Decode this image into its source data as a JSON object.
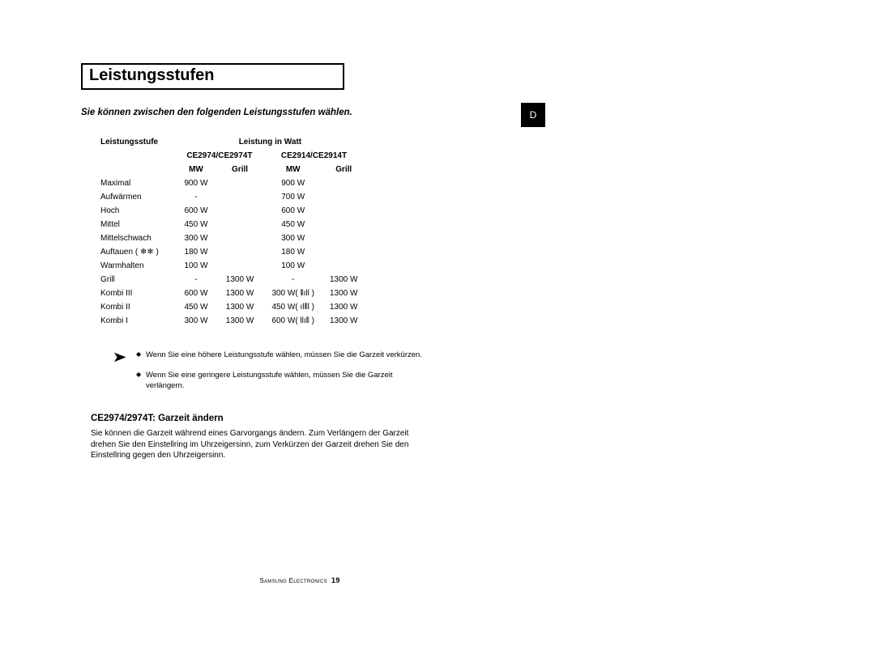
{
  "title": "Leistungsstufen",
  "intro": "Sie können zwischen den folgenden Leistungsstufen wählen.",
  "side_badge": "D",
  "table": {
    "col_level": "Leistungsstufe",
    "col_power": "Leistung in Watt",
    "model1": "CE2974/CE2974T",
    "model2": "CE2914/CE2914T",
    "sub_mw": "MW",
    "sub_grill": "Grill",
    "rows": [
      {
        "label": "Maximal",
        "m1_mw": "900 W",
        "m1_g": "",
        "m2_mw": "900 W",
        "m2_g": ""
      },
      {
        "label": "Aufwärmen",
        "m1_mw": "-",
        "m1_g": "",
        "m2_mw": "700 W",
        "m2_g": ""
      },
      {
        "label": "Hoch",
        "m1_mw": "600 W",
        "m1_g": "",
        "m2_mw": "600 W",
        "m2_g": ""
      },
      {
        "label": "Mittel",
        "m1_mw": "450 W",
        "m1_g": "",
        "m2_mw": "450 W",
        "m2_g": ""
      },
      {
        "label": "Mittelschwach",
        "m1_mw": "300 W",
        "m1_g": "",
        "m2_mw": "300 W",
        "m2_g": ""
      },
      {
        "label": "Auftauen ( ❄❄ )",
        "m1_mw": "180 W",
        "m1_g": "",
        "m2_mw": "180 W",
        "m2_g": ""
      },
      {
        "label": "Warmhalten",
        "m1_mw": "100 W",
        "m1_g": "",
        "m2_mw": "100 W",
        "m2_g": ""
      },
      {
        "label": "Grill",
        "m1_mw": "-",
        "m1_g": "1300 W",
        "m2_mw": "-",
        "m2_g": "1300 W"
      },
      {
        "label": "Kombi III",
        "m1_mw": "600 W",
        "m1_g": "1300 W",
        "m2_mw": "300 W( ⫴ıll )",
        "m2_g": "1300 W"
      },
      {
        "label": "Kombi II",
        "m1_mw": "450 W",
        "m1_g": "1300 W",
        "m2_mw": "450 W( ıl⫴l )",
        "m2_g": "1300 W"
      },
      {
        "label": "Kombi I",
        "m1_mw": "300 W",
        "m1_g": "1300 W",
        "m2_mw": "600 W( llı⫴ )",
        "m2_g": "1300 W"
      }
    ]
  },
  "notes": [
    "Wenn Sie eine höhere Leistungsstufe wählen, müssen Sie die Garzeit verkürzen.",
    "Wenn Sie eine geringere Leistungsstufe wählen, müssen Sie die Garzeit verlängern."
  ],
  "section2": {
    "heading": "CE2974/2974T: Garzeit ändern",
    "body": "Sie können die Garzeit während eines Garvorgangs ändern. Zum Verlängern der Garzeit drehen Sie den Einstellring im Uhrzeigersinn, zum Verkürzen der Garzeit drehen Sie den Einstellring gegen den Uhrzeigersinn."
  },
  "footer": {
    "brand": "Samsung Electronics",
    "page": "19"
  }
}
